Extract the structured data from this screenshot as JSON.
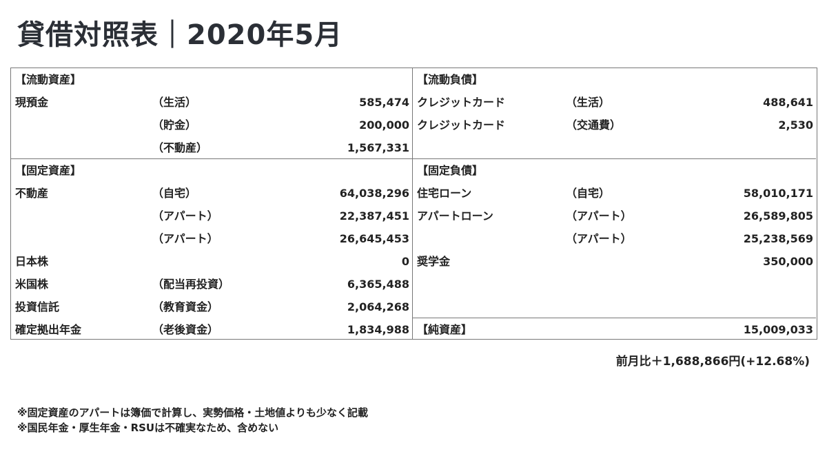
{
  "title": "貸借対照表｜2020年5月",
  "assets": {
    "current": {
      "header": "【流動資産】",
      "rows": [
        {
          "label": "現預金",
          "sub": "（生活）",
          "value": "585,474"
        },
        {
          "label": "",
          "sub": "（貯金）",
          "value": "200,000"
        },
        {
          "label": "",
          "sub": "（不動産）",
          "value": "1,567,331"
        }
      ]
    },
    "fixed": {
      "header": "【固定資産】",
      "rows": [
        {
          "label": "不動産",
          "sub": "（自宅）",
          "value": "64,038,296"
        },
        {
          "label": "",
          "sub": "（アパート）",
          "value": "22,387,451"
        },
        {
          "label": "",
          "sub": "（アパート）",
          "value": "26,645,453"
        },
        {
          "label": "日本株",
          "sub": "",
          "value": "0"
        },
        {
          "label": "米国株",
          "sub": "（配当再投資）",
          "value": "6,365,488"
        },
        {
          "label": "投資信託",
          "sub": "（教育資金）",
          "value": "2,064,268"
        },
        {
          "label": "確定拠出年金",
          "sub": "（老後資金）",
          "value": "1,834,988"
        }
      ]
    }
  },
  "liabilities": {
    "current": {
      "header": "【流動負債】",
      "rows": [
        {
          "label": "クレジットカード",
          "sub": "（生活）",
          "value": "488,641"
        },
        {
          "label": "クレジットカード",
          "sub": "（交通費）",
          "value": "2,530"
        }
      ]
    },
    "fixed": {
      "header": "【固定負債】",
      "rows": [
        {
          "label": "住宅ローン",
          "sub": "（自宅）",
          "value": "58,010,171"
        },
        {
          "label": "アパートローン",
          "sub": "（アパート）",
          "value": "26,589,805"
        },
        {
          "label": "",
          "sub": "（アパート）",
          "value": "25,238,569"
        },
        {
          "label": "奨学金",
          "sub": "",
          "value": "350,000"
        }
      ]
    },
    "net_assets": {
      "header": "【純資産】",
      "value": "15,009,033"
    }
  },
  "change": "前月比＋1,688,866円(+12.68%)",
  "notes": [
    "※固定資産のアパートは簿価で計算し、実勢価格・土地値よりも少なく記載",
    "※国民年金・厚生年金・RSUは不確実なため、含めない"
  ]
}
